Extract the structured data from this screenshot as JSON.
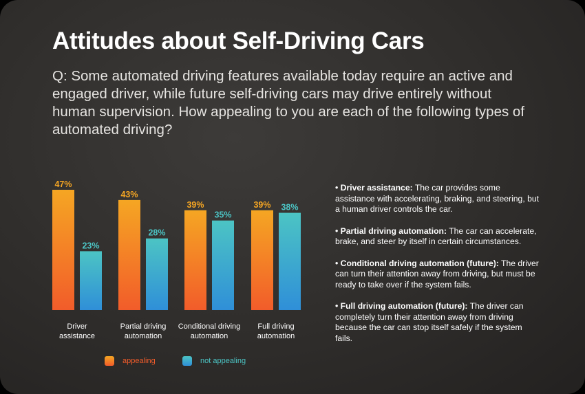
{
  "title": "Attitudes about Self-Driving Cars",
  "question": "Q: Some automated driving features available today require an active and engaged driver, while future self-driving cars may drive entirely without human supervision. How appealing to you are each of the following types of automated driving?",
  "colors": {
    "appealing_top": "#f5a623",
    "appealing_bottom": "#f25c2a",
    "not_appealing_top": "#4cc4c4",
    "not_appealing_bottom": "#2f8fd8",
    "appealing_label": "#f5a623",
    "not_appealing_label": "#4cc4c4"
  },
  "chart_data": {
    "type": "bar",
    "categories": [
      [
        "Driver",
        "assistance"
      ],
      [
        "Partial driving",
        "automation"
      ],
      [
        "Conditional driving",
        "automation"
      ],
      [
        "Full driving",
        "automation"
      ]
    ],
    "series": [
      {
        "name": "appealing",
        "values": [
          47,
          43,
          39,
          39
        ],
        "labels": [
          "47%",
          "43%",
          "39%",
          "39%"
        ]
      },
      {
        "name": "not appealing",
        "values": [
          23,
          28,
          35,
          38
        ],
        "labels": [
          "23%",
          "28%",
          "35%",
          "38%"
        ]
      }
    ],
    "ylim": [
      0,
      47
    ],
    "grid": false,
    "legend_position": "bottom"
  },
  "legend": {
    "appealing": "appealing",
    "not_appealing": "not appealing"
  },
  "definitions": [
    {
      "term": "• Driver assistance:",
      "text": " The car provides some assistance with accelerating, braking, and steering, but a human driver controls the car."
    },
    {
      "term": "• Partial driving automation:",
      "text": " The car can accelerate, brake, and steer by itself in certain circumstances."
    },
    {
      "term": "• Conditional driving automation (future):",
      "text": " The driver can turn their attention away from driving, but must be ready to take over if the system fails."
    },
    {
      "term": "• Full driving automation (future):",
      "text": " The driver can completely turn their attention away from driving because the car can stop itself safely if the system fails."
    }
  ]
}
